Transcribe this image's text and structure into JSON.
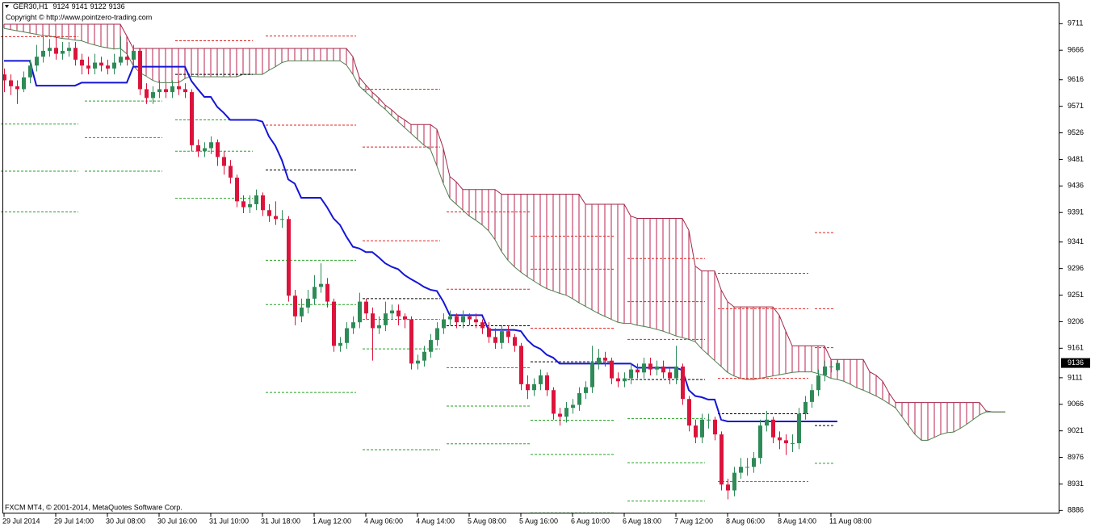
{
  "chart_data": {
    "type": "candlestick",
    "title": "GER30,H1",
    "subtitle": "Copyright © http://www.pointzero-trading.com",
    "footer": "FXCM MT4, © 2001-2014, MetaQuotes Software Corp.",
    "colors": {
      "up": "#2e8b57",
      "down": "#dc143c",
      "baseline": "#1515d8",
      "cloud": "#b8204e",
      "cloud_upper": "#a0284a",
      "cloud_lower": "#4f7f4f"
    },
    "ylim": [
      8881,
      9747
    ],
    "yticks": [
      9711,
      9666,
      9616,
      9571,
      9526,
      9481,
      9436,
      9391,
      9341,
      9296,
      9251,
      9206,
      9161,
      9111,
      9066,
      9021,
      8976,
      8931,
      8886
    ],
    "categories": [
      "29 Jul 2014",
      null,
      null,
      null,
      null,
      null,
      null,
      null,
      "29 Jul 14:00",
      null,
      null,
      null,
      null,
      null,
      null,
      null,
      "30 Jul 08:00",
      null,
      null,
      null,
      null,
      null,
      null,
      null,
      "30 Jul 16:00",
      null,
      null,
      null,
      null,
      null,
      null,
      null,
      "31 Jul 10:00",
      null,
      null,
      null,
      null,
      null,
      null,
      null,
      "31 Jul 18:00",
      null,
      null,
      null,
      null,
      null,
      null,
      null,
      "1 Aug 12:00",
      null,
      null,
      null,
      null,
      null,
      null,
      null,
      "4 Aug 06:00",
      null,
      null,
      null,
      null,
      null,
      null,
      null,
      "4 Aug 14:00",
      null,
      null,
      null,
      null,
      null,
      null,
      null,
      "5 Aug 08:00",
      null,
      null,
      null,
      null,
      null,
      null,
      null,
      "5 Aug 16:00",
      null,
      null,
      null,
      null,
      null,
      null,
      null,
      "6 Aug 10:00",
      null,
      null,
      null,
      null,
      null,
      null,
      null,
      "6 Aug 18:00",
      null,
      null,
      null,
      null,
      null,
      null,
      null,
      "7 Aug 12:00",
      null,
      null,
      null,
      null,
      null,
      null,
      null,
      "8 Aug 06:00",
      null,
      null,
      null,
      null,
      null,
      null,
      null,
      "8 Aug 14:00",
      null,
      null,
      null,
      null,
      null,
      null,
      null,
      "11 Aug 08:00",
      null
    ],
    "ohlc": [
      [
        9625,
        9635,
        9595,
        9615
      ],
      [
        9615,
        9625,
        9590,
        9605
      ],
      [
        9605,
        9615,
        9575,
        9600
      ],
      [
        9600,
        9630,
        9595,
        9620
      ],
      [
        9620,
        9650,
        9610,
        9640
      ],
      [
        9640,
        9675,
        9630,
        9655
      ],
      [
        9655,
        9690,
        9645,
        9665
      ],
      [
        9665,
        9685,
        9655,
        9670
      ],
      [
        9670,
        9690,
        9650,
        9660
      ],
      [
        9660,
        9680,
        9650,
        9665
      ],
      [
        9665,
        9680,
        9655,
        9670
      ],
      [
        9670,
        9680,
        9640,
        9650
      ],
      [
        9650,
        9660,
        9625,
        9640
      ],
      [
        9640,
        9655,
        9625,
        9635
      ],
      [
        9635,
        9660,
        9625,
        9645
      ],
      [
        9645,
        9655,
        9630,
        9640
      ],
      [
        9640,
        9650,
        9625,
        9635
      ],
      [
        9635,
        9660,
        9625,
        9645
      ],
      [
        9645,
        9690,
        9640,
        9655
      ],
      [
        9655,
        9680,
        9640,
        9650
      ],
      [
        9650,
        9675,
        9640,
        9665
      ],
      [
        9665,
        9670,
        9590,
        9600
      ],
      [
        9600,
        9610,
        9575,
        9585
      ],
      [
        9585,
        9605,
        9575,
        9595
      ],
      [
        9595,
        9615,
        9585,
        9600
      ],
      [
        9600,
        9610,
        9585,
        9595
      ],
      [
        9595,
        9615,
        9585,
        9605
      ],
      [
        9605,
        9615,
        9590,
        9600
      ],
      [
        9600,
        9610,
        9585,
        9595
      ],
      [
        9595,
        9600,
        9495,
        9505
      ],
      [
        9505,
        9515,
        9485,
        9495
      ],
      [
        9495,
        9510,
        9485,
        9500
      ],
      [
        9500,
        9520,
        9490,
        9510
      ],
      [
        9510,
        9515,
        9470,
        9485
      ],
      [
        9485,
        9495,
        9455,
        9470
      ],
      [
        9470,
        9480,
        9440,
        9450
      ],
      [
        9450,
        9455,
        9400,
        9410
      ],
      [
        9410,
        9420,
        9390,
        9400
      ],
      [
        9400,
        9420,
        9390,
        9405
      ],
      [
        9405,
        9430,
        9395,
        9420
      ],
      [
        9420,
        9425,
        9385,
        9395
      ],
      [
        9395,
        9405,
        9375,
        9385
      ],
      [
        9385,
        9410,
        9370,
        9380
      ],
      [
        9380,
        9395,
        9365,
        9380
      ],
      [
        9380,
        9385,
        9240,
        9250
      ],
      [
        9250,
        9260,
        9200,
        9215
      ],
      [
        9215,
        9245,
        9205,
        9230
      ],
      [
        9230,
        9260,
        9220,
        9245
      ],
      [
        9245,
        9285,
        9235,
        9265
      ],
      [
        9265,
        9305,
        9255,
        9270
      ],
      [
        9270,
        9280,
        9230,
        9240
      ],
      [
        9240,
        9245,
        9155,
        9165
      ],
      [
        9165,
        9180,
        9155,
        9170
      ],
      [
        9170,
        9205,
        9160,
        9195
      ],
      [
        9195,
        9215,
        9185,
        9205
      ],
      [
        9205,
        9255,
        9195,
        9240
      ],
      [
        9240,
        9245,
        9210,
        9220
      ],
      [
        9220,
        9230,
        9140,
        9195
      ],
      [
        9195,
        9215,
        9185,
        9200
      ],
      [
        9200,
        9240,
        9190,
        9220
      ],
      [
        9220,
        9235,
        9210,
        9225
      ],
      [
        9225,
        9235,
        9200,
        9215
      ],
      [
        9215,
        9220,
        9195,
        9210
      ],
      [
        9210,
        9215,
        9125,
        9135
      ],
      [
        9135,
        9150,
        9125,
        9140
      ],
      [
        9140,
        9165,
        9130,
        9155
      ],
      [
        9155,
        9185,
        9145,
        9175
      ],
      [
        9175,
        9205,
        9165,
        9195
      ],
      [
        9195,
        9220,
        9185,
        9210
      ],
      [
        9210,
        9225,
        9200,
        9215
      ],
      [
        9215,
        9220,
        9195,
        9205
      ],
      [
        9205,
        9225,
        9195,
        9215
      ],
      [
        9215,
        9220,
        9200,
        9210
      ],
      [
        9210,
        9220,
        9195,
        9205
      ],
      [
        9205,
        9210,
        9185,
        9195
      ],
      [
        9195,
        9205,
        9170,
        9180
      ],
      [
        9180,
        9195,
        9160,
        9170
      ],
      [
        9170,
        9200,
        9160,
        9190
      ],
      [
        9190,
        9200,
        9170,
        9180
      ],
      [
        9180,
        9185,
        9155,
        9165
      ],
      [
        9165,
        9170,
        9090,
        9100
      ],
      [
        9100,
        9115,
        9075,
        9090
      ],
      [
        9090,
        9110,
        9080,
        9100
      ],
      [
        9100,
        9125,
        9090,
        9115
      ],
      [
        9115,
        9120,
        9080,
        9090
      ],
      [
        9090,
        9095,
        9040,
        9050
      ],
      [
        9050,
        9060,
        9030,
        9045
      ],
      [
        9045,
        9070,
        9035,
        9060
      ],
      [
        9060,
        9075,
        9050,
        9065
      ],
      [
        9065,
        9095,
        9055,
        9085
      ],
      [
        9085,
        9105,
        9075,
        9095
      ],
      [
        9095,
        9165,
        9085,
        9135
      ],
      [
        9135,
        9160,
        9125,
        9145
      ],
      [
        9145,
        9155,
        9130,
        9140
      ],
      [
        9140,
        9145,
        9100,
        9110
      ],
      [
        9110,
        9120,
        9095,
        9105
      ],
      [
        9105,
        9120,
        9095,
        9110
      ],
      [
        9110,
        9135,
        9100,
        9125
      ],
      [
        9125,
        9135,
        9110,
        9120
      ],
      [
        9120,
        9145,
        9110,
        9135
      ],
      [
        9135,
        9145,
        9115,
        9125
      ],
      [
        9125,
        9140,
        9115,
        9130
      ],
      [
        9130,
        9140,
        9110,
        9120
      ],
      [
        9120,
        9130,
        9100,
        9110
      ],
      [
        9110,
        9165,
        9100,
        9130
      ],
      [
        9130,
        9135,
        9065,
        9075
      ],
      [
        9075,
        9080,
        9020,
        9030
      ],
      [
        9030,
        9040,
        9000,
        9010
      ],
      [
        9010,
        9050,
        9000,
        9040
      ],
      [
        9040,
        9050,
        9025,
        9040
      ],
      [
        9040,
        9045,
        9005,
        9015
      ],
      [
        9015,
        9020,
        8920,
        8930
      ],
      [
        8930,
        8940,
        8905,
        8920
      ],
      [
        8920,
        8960,
        8910,
        8950
      ],
      [
        8950,
        8975,
        8940,
        8960
      ],
      [
        8960,
        8975,
        8945,
        8960
      ],
      [
        8960,
        8985,
        8950,
        8975
      ],
      [
        8975,
        9040,
        8965,
        9030
      ],
      [
        9030,
        9055,
        9020,
        9040
      ],
      [
        9040,
        9045,
        9000,
        9010
      ],
      [
        9010,
        9020,
        8990,
        9005
      ],
      [
        9005,
        9015,
        8980,
        9000
      ],
      [
        9000,
        9015,
        8985,
        9000
      ],
      [
        9000,
        9060,
        8990,
        9050
      ],
      [
        9050,
        9080,
        9040,
        9070
      ],
      [
        9070,
        9100,
        9060,
        9090
      ],
      [
        9090,
        9125,
        9080,
        9115
      ],
      [
        9115,
        9140,
        9105,
        9130
      ],
      [
        9130,
        9140,
        9120,
        9130
      ],
      [
        9124,
        9141,
        9122,
        9136
      ]
    ],
    "baseline": [
      9648,
      9648,
      9648,
      9648,
      9648,
      9606,
      9606,
      9606,
      9606,
      9606,
      9606,
      9606,
      9611,
      9611,
      9611,
      9611,
      9611,
      9611,
      9611,
      9611,
      9638,
      9638,
      9638,
      9638,
      9638,
      9638,
      9638,
      9638,
      9638,
      9614,
      9600,
      9587,
      9587,
      9570,
      9560,
      9548,
      9548,
      9548,
      9548,
      9548,
      9545,
      9520,
      9504,
      9480,
      9447,
      9440,
      9416,
      9416,
      9416,
      9416,
      9400,
      9381,
      9370,
      9350,
      9333,
      9330,
      9324,
      9324,
      9315,
      9305,
      9299,
      9295,
      9285,
      9278,
      9272,
      9265,
      9260,
      9258,
      9240,
      9217,
      9217,
      9217,
      9217,
      9217,
      9217,
      9192,
      9192,
      9192,
      9192,
      9192,
      9190,
      9175,
      9165,
      9160,
      9150,
      9145,
      9135,
      9135,
      9135,
      9135,
      9135,
      9135,
      9135,
      9135,
      9135,
      9135,
      9135,
      9135,
      9128,
      9128,
      9128,
      9128,
      9128,
      9128,
      9128,
      9124,
      9090,
      9080,
      9078,
      9074,
      9074,
      9040,
      9037,
      9037,
      9037,
      9037,
      9037,
      9037,
      9037,
      9037,
      9037,
      9037,
      9037,
      9037,
      9037,
      9037,
      9037,
      9037,
      9037,
      9037
    ],
    "cloud_upper": [
      9710,
      9710,
      9710,
      9710,
      9710,
      9710,
      9710,
      9710,
      9710,
      9710,
      9710,
      9710,
      9710,
      9710,
      9710,
      9710,
      9710,
      9710,
      9710,
      9690,
      9669,
      9669,
      9669,
      9669,
      9669,
      9669,
      9669,
      9669,
      9669,
      9669,
      9669,
      9669,
      9669,
      9669,
      9669,
      9669,
      9669,
      9669,
      9669,
      9669,
      9669,
      9669,
      9669,
      9669,
      9669,
      9669,
      9669,
      9669,
      9669,
      9669,
      9669,
      9669,
      9669,
      9669,
      9655,
      9620,
      9607,
      9595,
      9585,
      9573,
      9565,
      9555,
      9548,
      9540,
      9540,
      9540,
      9540,
      9532,
      9500,
      9452,
      9443,
      9430,
      9430,
      9430,
      9430,
      9430,
      9430,
      9422,
      9422,
      9422,
      9422,
      9422,
      9422,
      9422,
      9422,
      9422,
      9422,
      9422,
      9422,
      9422,
      9405,
      9405,
      9405,
      9405,
      9405,
      9405,
      9405,
      9385,
      9381,
      9381,
      9381,
      9381,
      9381,
      9381,
      9381,
      9381,
      9361,
      9300,
      9292,
      9292,
      9292,
      9260,
      9240,
      9231,
      9231,
      9231,
      9231,
      9231,
      9231,
      9231,
      9217,
      9190,
      9165,
      9165,
      9165,
      9165,
      9165,
      9165,
      9142,
      9142,
      9142,
      9142,
      9142,
      9142,
      9121,
      9115,
      9105,
      9085,
      9069,
      9069,
      9069,
      9069,
      9069,
      9069,
      9069,
      9069,
      9069,
      9069,
      9069,
      9069,
      9069,
      9069,
      9055,
      9053,
      9053,
      9053
    ],
    "cloud_lower": [
      9703,
      9701,
      9699,
      9697,
      9695,
      9693,
      9691,
      9690,
      9688,
      9686,
      9685,
      9683,
      9682,
      9678,
      9675,
      9672,
      9670,
      9668,
      9669,
      9660,
      9640,
      9628,
      9622,
      9615,
      9611,
      9611,
      9611,
      9611,
      9618,
      9622,
      9621,
      9621,
      9621,
      9621,
      9621,
      9621,
      9621,
      9625,
      9625,
      9625,
      9625,
      9632,
      9638,
      9645,
      9648,
      9648,
      9648,
      9648,
      9648,
      9648,
      9648,
      9648,
      9648,
      9641,
      9625,
      9605,
      9595,
      9585,
      9575,
      9566,
      9555,
      9545,
      9535,
      9525,
      9515,
      9505,
      9498,
      9470,
      9440,
      9415,
      9405,
      9395,
      9385,
      9378,
      9370,
      9360,
      9345,
      9325,
      9310,
      9299,
      9290,
      9282,
      9275,
      9268,
      9262,
      9258,
      9254,
      9251,
      9245,
      9238,
      9232,
      9226,
      9220,
      9215,
      9210,
      9205,
      9203,
      9203,
      9200,
      9198,
      9196,
      9193,
      9190,
      9186,
      9182,
      9179,
      9176,
      9172,
      9160,
      9150,
      9140,
      9130,
      9120,
      9114,
      9110,
      9108,
      9108,
      9110,
      9112,
      9114,
      9116,
      9118,
      9120,
      9121,
      9121,
      9121,
      9118,
      9115,
      9110,
      9108,
      9105,
      9100,
      9094,
      9090,
      9085,
      9080,
      9074,
      9067,
      9060,
      9045,
      9030,
      9015,
      9005,
      9005,
      9010,
      9015,
      9018,
      9019,
      9025,
      9032,
      9040,
      9048,
      9053,
      9053,
      9053,
      9053
    ],
    "level_colors": {
      "red": "#e02424",
      "green": "#26a226",
      "black": "#000000"
    },
    "levels": [
      {
        "from": 0,
        "to": 11,
        "red": [
          9689
        ],
        "green": [
          9541,
          9461,
          9392
        ]
      },
      {
        "from": 13,
        "to": 24,
        "green": [
          9580,
          9518,
          9461
        ]
      },
      {
        "from": 27,
        "to": 38,
        "red": [
          9682
        ],
        "green": [
          9548,
          9495,
          9415
        ],
        "black": [
          9625
        ]
      },
      {
        "from": 41,
        "to": 54,
        "red": [
          9690,
          9539
        ],
        "green": [
          9310,
          9235,
          9086
        ],
        "black": [
          9463
        ]
      },
      {
        "from": 56,
        "to": 67,
        "red": [
          9600,
          9502,
          9343
        ],
        "green": [
          9210,
          9160,
          8989
        ],
        "black": [
          9245
        ]
      },
      {
        "from": 69,
        "to": 81,
        "red": [
          9392,
          9261
        ],
        "green": [
          9128,
          9063,
          8999
        ],
        "black": [
          9199
        ]
      },
      {
        "from": 82,
        "to": 94,
        "red": [
          9351,
          9295,
          9195
        ],
        "green": [
          9039,
          8981,
          8882
        ],
        "black": [
          9138
        ]
      },
      {
        "from": 97,
        "to": 108,
        "red": [
          9313,
          9240,
          9176
        ],
        "green": [
          9042,
          8967,
          8902
        ],
        "black": [
          9108
        ]
      },
      {
        "from": 111,
        "to": 124,
        "red": [
          9288,
          9228,
          9110
        ],
        "green": [
          8935
        ],
        "black": [
          9050
        ]
      },
      {
        "from": 126,
        "to": 128,
        "red": [
          9357,
          9228,
          9162
        ],
        "green": [
          8966
        ],
        "black": [
          9030
        ]
      }
    ]
  }
}
